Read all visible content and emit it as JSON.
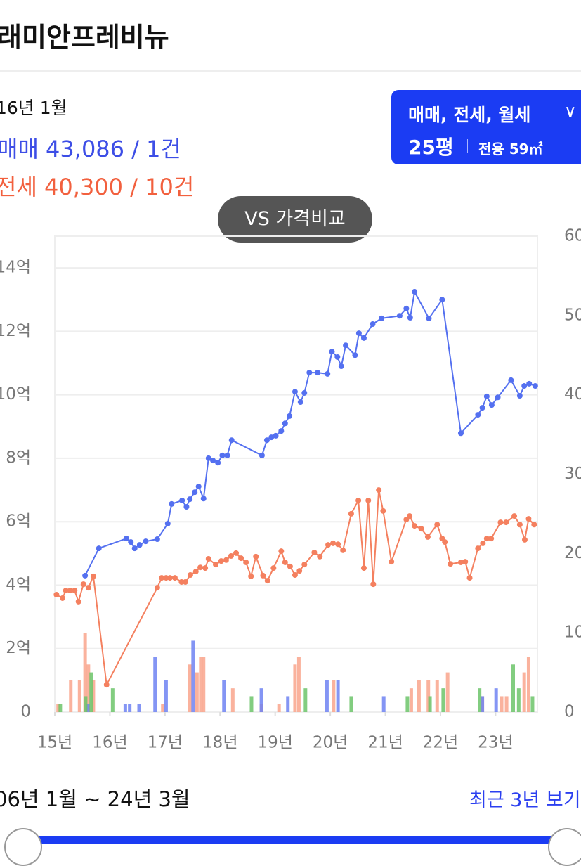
{
  "header": {
    "title": "래미안프레비뉴"
  },
  "info": {
    "date": "16년 1월",
    "sale": "매매 43,086 / 1건",
    "jeonse": "전세 40,300 / 10건"
  },
  "filter": {
    "label": "매매, 전세, 월세",
    "size": "25평",
    "area": "전용 59㎡"
  },
  "compare_button": "VS 가격비교",
  "footer": {
    "range": "06년 1월 ~ 24년 3월",
    "recent": "최근 3년 보기"
  },
  "chart_data": {
    "type": "combo",
    "grid": true,
    "xlim": [
      2015,
      2023.76
    ],
    "xticks": [
      {
        "value": 2015,
        "label": "15년"
      },
      {
        "value": 2016,
        "label": "16년"
      },
      {
        "value": 2017,
        "label": "17년"
      },
      {
        "value": 2018,
        "label": "18년"
      },
      {
        "value": 2019,
        "label": "19년"
      },
      {
        "value": 2020,
        "label": "20년"
      },
      {
        "value": 2021,
        "label": "21년"
      },
      {
        "value": 2022,
        "label": "22년"
      },
      {
        "value": 2023,
        "label": "23년"
      }
    ],
    "ylim": [
      0,
      15
    ],
    "yticks": [
      0,
      {
        "value": 2,
        "label": "2억"
      },
      {
        "value": 4,
        "label": "4억"
      },
      {
        "value": 6,
        "label": "6억"
      },
      {
        "value": 8,
        "label": "8억"
      },
      {
        "value": 10,
        "label": "10억"
      },
      {
        "value": 12,
        "label": "12억"
      },
      {
        "value": 14,
        "label": "14억"
      }
    ],
    "y2lim": [
      0,
      60
    ],
    "y2ticks": [
      0,
      10,
      20,
      30,
      40,
      50,
      60
    ],
    "series": [
      {
        "type": "bar",
        "axis": "y2",
        "color": "#f9a58c",
        "x": [
          2015.06,
          2015.29,
          2015.45,
          2015.55,
          2015.61,
          2015.7,
          2016.96,
          2017.45,
          2017.58,
          2017.65,
          2017.7,
          2018.23,
          2018.75,
          2019.07,
          2019.36,
          2019.43,
          2020.06,
          2021.47,
          2021.61,
          2021.78,
          2021.94,
          2022.13,
          2022.76,
          2023.11,
          2023.2,
          2023.52,
          2023.6
        ],
        "values": [
          1,
          4,
          4,
          10,
          6,
          4,
          1,
          6,
          5,
          7,
          7,
          3,
          1,
          1,
          6,
          7,
          4,
          3,
          4,
          4,
          4,
          5,
          2,
          2,
          2,
          5,
          7
        ]
      },
      {
        "type": "bar",
        "axis": "y2",
        "color": "#6f82f2",
        "x": [
          2015.6,
          2016.28,
          2016.36,
          2016.53,
          2016.82,
          2017.02,
          2017.51,
          2018.07,
          2018.75,
          2019.23,
          2019.94,
          2020.14,
          2020.97,
          2022.76,
          2023.01
        ],
        "values": [
          1,
          1,
          1,
          1,
          7,
          4,
          9,
          4,
          3,
          2,
          4,
          4,
          2,
          2,
          3
        ]
      },
      {
        "type": "bar",
        "axis": "y2",
        "color": "#6cc46a",
        "x": [
          2015.1,
          2015.56,
          2015.66,
          2016.05,
          2018.57,
          2019.55,
          2020.38,
          2021.4,
          2021.81,
          2022.05,
          2022.71,
          2023.32,
          2023.42,
          2023.67
        ],
        "values": [
          1,
          2,
          5,
          3,
          2,
          3,
          2,
          2,
          2,
          3,
          3,
          6,
          3,
          2
        ]
      },
      {
        "type": "line",
        "color": "#f4805f",
        "x": [
          2015.03,
          2015.14,
          2015.2,
          2015.28,
          2015.36,
          2015.43,
          2015.52,
          2015.61,
          2015.7,
          2015.94,
          2016.86,
          2016.94,
          2017.02,
          2017.09,
          2017.18,
          2017.3,
          2017.37,
          2017.46,
          2017.56,
          2017.64,
          2017.73,
          2017.79,
          2017.92,
          2018.02,
          2018.11,
          2018.2,
          2018.29,
          2018.38,
          2018.47,
          2018.56,
          2018.65,
          2018.78,
          2018.86,
          2018.97,
          2019.11,
          2019.18,
          2019.27,
          2019.36,
          2019.44,
          2019.53,
          2019.71,
          2019.81,
          2019.96,
          2020.05,
          2020.14,
          2020.23,
          2020.38,
          2020.51,
          2020.61,
          2020.69,
          2020.78,
          2020.88,
          2020.96,
          2021.11,
          2021.38,
          2021.44,
          2021.53,
          2021.65,
          2021.77,
          2021.94,
          2022.03,
          2022.08,
          2022.18,
          2022.37,
          2022.45,
          2022.53,
          2022.68,
          2022.77,
          2022.84,
          2022.92,
          2023.09,
          2023.19,
          2023.34,
          2023.44,
          2023.53,
          2023.6,
          2023.7
        ],
        "values": [
          3.7,
          3.59,
          3.83,
          3.83,
          3.83,
          3.48,
          4.03,
          3.92,
          4.28,
          0.86,
          3.92,
          4.23,
          4.23,
          4.23,
          4.23,
          4.1,
          4.1,
          4.32,
          4.43,
          4.56,
          4.54,
          4.83,
          4.65,
          4.76,
          4.79,
          4.92,
          5.01,
          4.85,
          4.72,
          4.28,
          4.9,
          4.3,
          4.14,
          4.54,
          5.07,
          4.72,
          4.59,
          4.32,
          4.45,
          4.65,
          5.03,
          4.9,
          5.27,
          5.32,
          5.29,
          5.1,
          6.25,
          6.67,
          4.54,
          6.67,
          4.03,
          7.0,
          6.34,
          4.74,
          6.07,
          6.18,
          5.87,
          5.78,
          5.52,
          5.91,
          5.47,
          5.36,
          4.67,
          4.72,
          4.74,
          4.23,
          5.16,
          5.32,
          5.47,
          5.47,
          5.98,
          5.98,
          6.18,
          5.91,
          5.43,
          6.09,
          5.91
        ]
      },
      {
        "type": "line",
        "color": "#5470f0",
        "x": [
          2015.55,
          2015.8,
          2016.3,
          2016.38,
          2016.45,
          2016.54,
          2016.65,
          2016.86,
          2017.05,
          2017.12,
          2017.31,
          2017.39,
          2017.45,
          2017.54,
          2017.61,
          2017.7,
          2017.79,
          2017.87,
          2017.96,
          2018.04,
          2018.13,
          2018.21,
          2018.76,
          2018.85,
          2018.93,
          2019.01,
          2019.11,
          2019.18,
          2019.26,
          2019.36,
          2019.46,
          2019.53,
          2019.62,
          2019.77,
          2019.95,
          2020.03,
          2020.13,
          2020.2,
          2020.28,
          2020.45,
          2020.52,
          2020.61,
          2020.77,
          2020.93,
          2021.26,
          2021.38,
          2021.45,
          2021.53,
          2021.79,
          2022.03,
          2022.37,
          2022.68,
          2022.76,
          2022.84,
          2022.93,
          2023.04,
          2023.28,
          2023.44,
          2023.52,
          2023.61,
          2023.72
        ],
        "values": [
          4.3,
          5.16,
          5.47,
          5.36,
          5.16,
          5.27,
          5.38,
          5.45,
          5.94,
          6.56,
          6.67,
          6.47,
          6.71,
          6.93,
          7.11,
          6.73,
          8.0,
          7.93,
          7.86,
          8.09,
          8.09,
          8.57,
          8.09,
          8.57,
          8.66,
          8.71,
          8.86,
          9.1,
          9.33,
          10.1,
          9.77,
          10.06,
          10.7,
          10.7,
          10.66,
          11.36,
          11.19,
          10.9,
          11.56,
          11.25,
          11.94,
          11.79,
          12.23,
          12.41,
          12.49,
          12.72,
          12.43,
          13.25,
          12.41,
          13.0,
          8.79,
          9.37,
          9.59,
          9.95,
          9.68,
          9.92,
          10.46,
          9.97,
          10.28,
          10.35,
          10.28
        ]
      }
    ]
  }
}
